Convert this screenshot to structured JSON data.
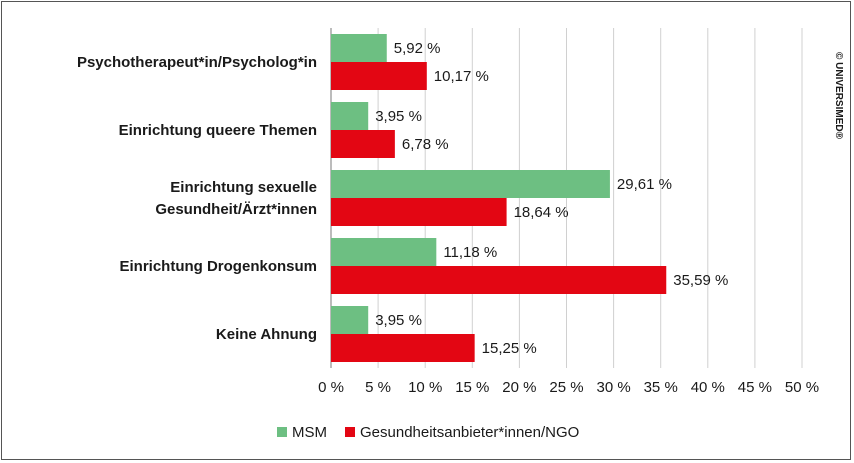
{
  "chart_data": {
    "type": "bar",
    "orientation": "horizontal",
    "categories": [
      [
        "Psychotherapeut*in/Psycholog*in"
      ],
      [
        "Einrichtung queere Themen"
      ],
      [
        "Einrichtung sexuelle",
        "Gesundheit/Ärzt*innen"
      ],
      [
        "Einrichtung Drogenkonsum"
      ],
      [
        "Keine Ahnung"
      ]
    ],
    "series": [
      {
        "name": "MSM",
        "color": "#6dbf82",
        "values": [
          5.92,
          3.95,
          29.61,
          11.18,
          3.95
        ],
        "labels": [
          "5,92 %",
          "3,95 %",
          "29,61 %",
          "11,18 %",
          "3,95 %"
        ]
      },
      {
        "name": "Gesundheitsanbieter*innen/NGO",
        "color": "#e30613",
        "values": [
          10.17,
          6.78,
          18.64,
          35.59,
          15.25
        ],
        "labels": [
          "10,17 %",
          "6,78 %",
          "18,64 %",
          "35,59 %",
          "15,25 %"
        ]
      }
    ],
    "xlim": [
      0,
      50
    ],
    "xticks": [
      0,
      5,
      10,
      15,
      20,
      25,
      30,
      35,
      40,
      45,
      50
    ],
    "xtick_labels": [
      "0 %",
      "5 %",
      "10 %",
      "15 %",
      "20 %",
      "25 %",
      "30 %",
      "35 %",
      "40 %",
      "45 %",
      "50 %"
    ],
    "grid": true,
    "legend_position": "bottom-center",
    "xlabel": "",
    "ylabel": "",
    "title": ""
  },
  "copyright": "© UNIVERSIMED®"
}
